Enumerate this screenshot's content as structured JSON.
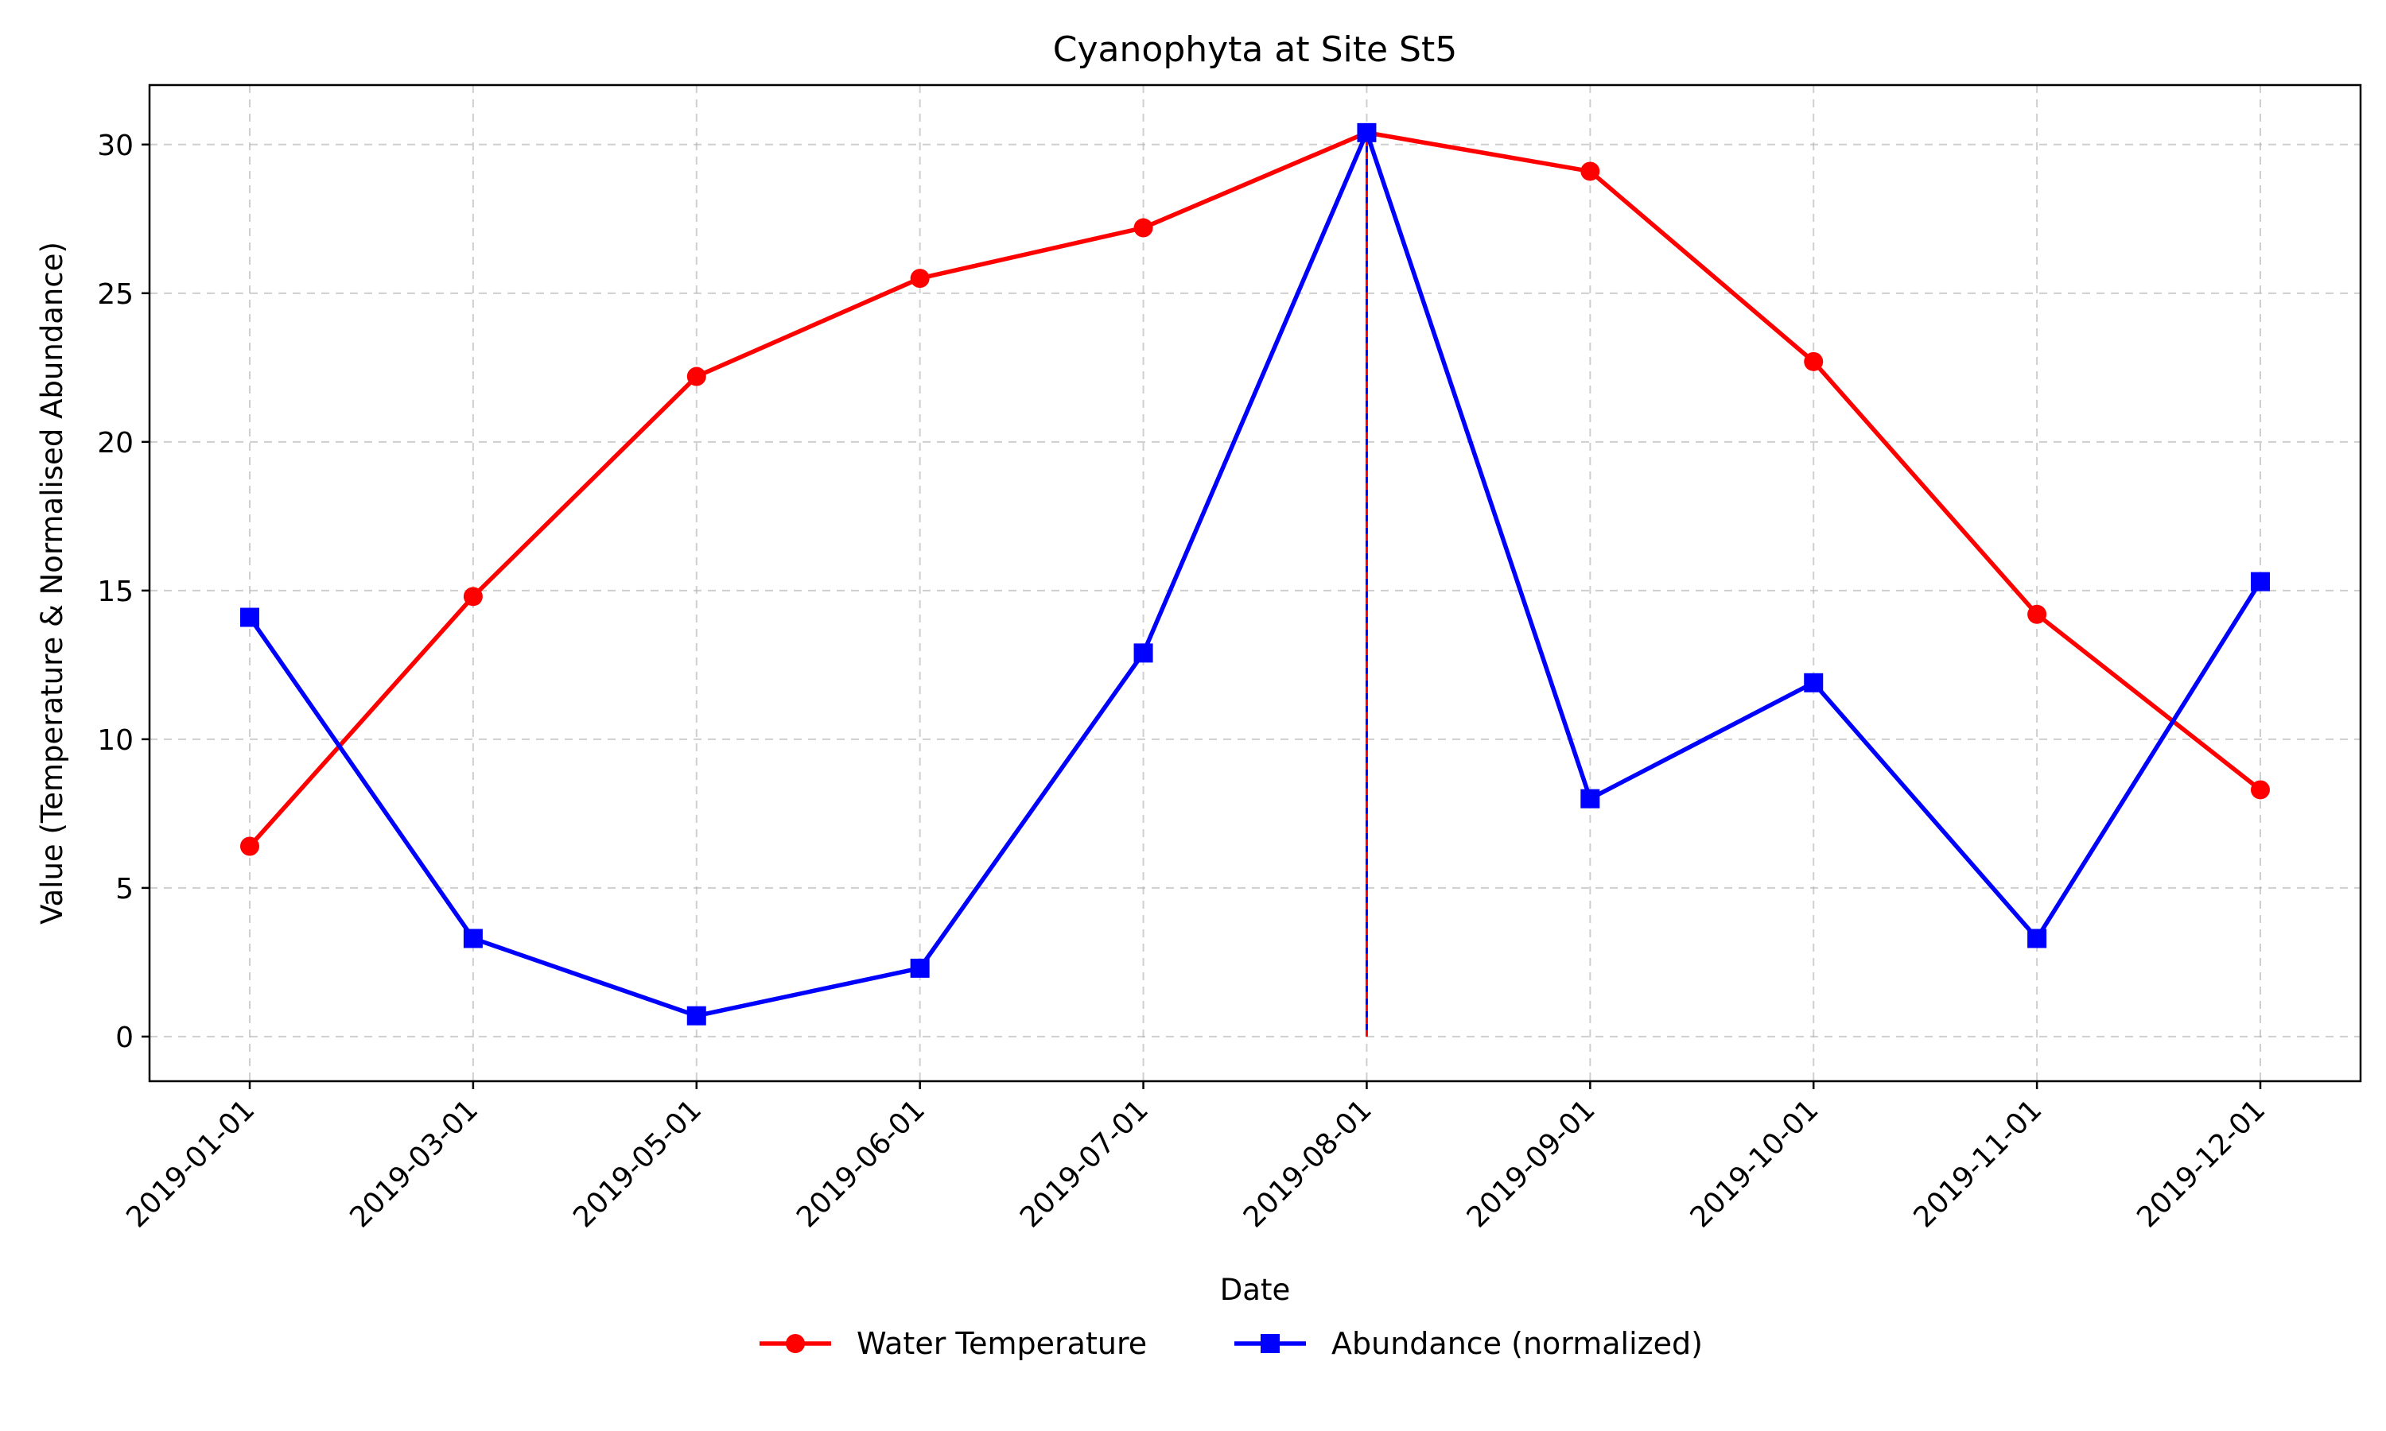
{
  "chart_data": {
    "type": "line",
    "title": "Cyanophyta at Site St5",
    "xlabel": "Date",
    "ylabel": "Value (Temperature & Normalised Abundance)",
    "categories": [
      "2019-01-01",
      "2019-03-01",
      "2019-05-01",
      "2019-06-01",
      "2019-07-01",
      "2019-08-01",
      "2019-09-01",
      "2019-10-01",
      "2019-11-01",
      "2019-12-01"
    ],
    "ylim": [
      -1.5,
      32
    ],
    "yticks": [
      0,
      5,
      10,
      15,
      20,
      25,
      30
    ],
    "grid": true,
    "legend_position": "bottom-center",
    "series": [
      {
        "name": "Water Temperature",
        "color": "#ff0000",
        "marker": "circle",
        "values": [
          6.4,
          14.8,
          22.2,
          25.5,
          27.2,
          30.4,
          29.1,
          22.7,
          14.2,
          8.3
        ]
      },
      {
        "name": "Abundance (normalized)",
        "color": "#0000ff",
        "marker": "square",
        "values": [
          14.1,
          3.3,
          0.7,
          2.3,
          12.9,
          30.4,
          8.0,
          11.9,
          3.3,
          15.3
        ]
      }
    ],
    "annotations": [
      {
        "type": "vertical-line",
        "x": "2019-08-01",
        "from": 0,
        "to": 30.4,
        "colors": [
          "#ff0000",
          "#0000ff"
        ]
      }
    ]
  }
}
